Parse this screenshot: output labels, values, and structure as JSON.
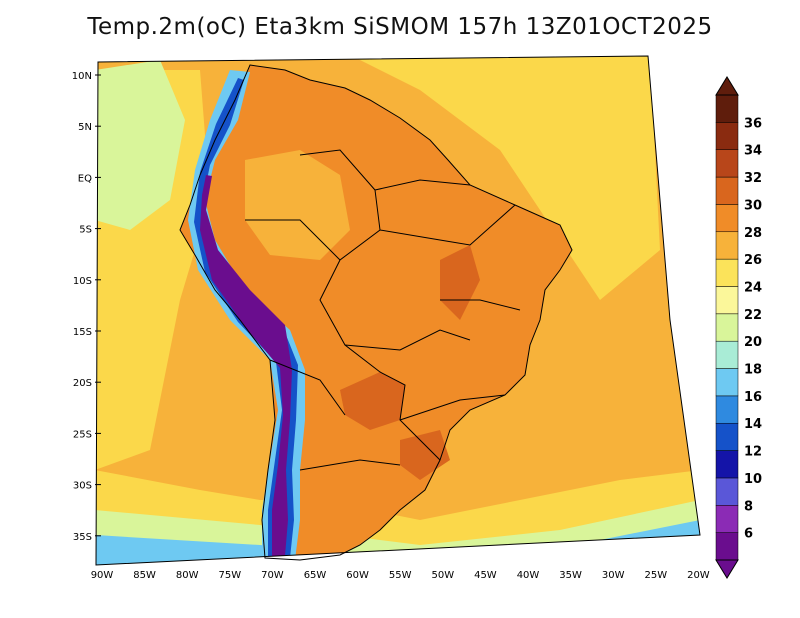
{
  "title": "Temp.2m(oC) Eta3km SiSMOM 157h 13Z01OCT2025",
  "lat_axis": [
    "10N",
    "5N",
    "EQ",
    "5S",
    "10S",
    "15S",
    "20S",
    "25S",
    "30S",
    "35S"
  ],
  "lon_axis": [
    "90W",
    "85W",
    "80W",
    "75W",
    "70W",
    "65W",
    "60W",
    "55W",
    "50W",
    "45W",
    "40W",
    "35W",
    "30W",
    "25W",
    "20W"
  ],
  "colorbar": {
    "levels": [
      "6",
      "8",
      "10",
      "12",
      "14",
      "16",
      "18",
      "20",
      "22",
      "24",
      "26",
      "28",
      "30",
      "32",
      "34",
      "36"
    ],
    "colors": [
      "#6a0d8e",
      "#8b2bb5",
      "#5a57d8",
      "#1414a8",
      "#1552c9",
      "#2f8ae0",
      "#6ec9f2",
      "#a9ecd6",
      "#d9f59a",
      "#fbf79a",
      "#fbe35a",
      "#f7b23a",
      "#f08c28",
      "#d9661e",
      "#b8461a",
      "#8a2b10",
      "#5f1d0c"
    ]
  },
  "palette": {
    "ocean_warm": "#f7b23a",
    "ocean_mild": "#fbd84a",
    "ocean_cool": "#d9f59a",
    "ocean_cold": "#6ec9f2",
    "land_hot": "#f08c28",
    "land_hotter": "#d9661e",
    "andes_high": "#6a0d8e",
    "andes_mid": "#1552c9",
    "andes_low": "#6ec9f2",
    "coast": "#000000"
  }
}
